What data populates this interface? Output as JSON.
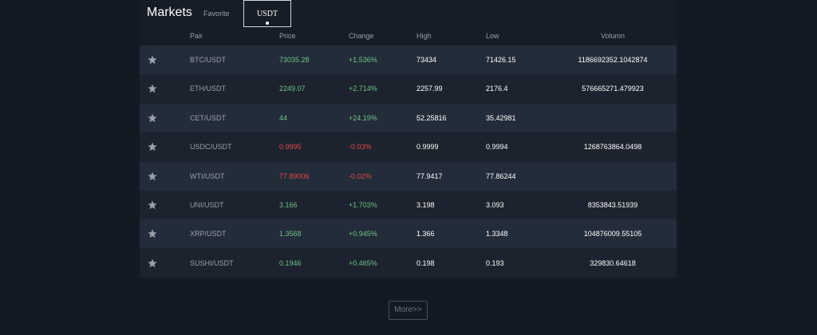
{
  "header": {
    "title": "Markets",
    "tabs": [
      "Favorite",
      "USDT"
    ]
  },
  "table": {
    "columns": [
      "Pair",
      "Price",
      "Change",
      "High",
      "Low",
      "Volumn"
    ],
    "rows": [
      [
        "BTC/USDT",
        "73035.28",
        "+1.536%",
        "73434",
        "71426.15",
        "1186692352.1042874"
      ],
      [
        "ETH/USDT",
        "2249.07",
        "+2.714%",
        "2257.99",
        "2176.4",
        "576665271.479923"
      ],
      [
        "CET/USDT",
        "44",
        "+24.19%",
        "52.25816",
        "35.42981",
        null
      ],
      [
        "USDC/USDT",
        "0.9995",
        "-0.03%",
        "0.9999",
        "0.9994",
        "1268763864.0498"
      ],
      [
        "WTI/USDT",
        "77.89006",
        "-0.02%",
        "77.9417",
        "77.86244",
        null
      ],
      [
        "UNI/USDT",
        "3.166",
        "+1.703%",
        "3.198",
        "3.093",
        "8353843.51939"
      ],
      [
        "XRP/USDT",
        "1.3568",
        "+0.945%",
        "1.366",
        "1.3348",
        "104876009.55105"
      ],
      [
        "SUSHI/USDT",
        "0.1946",
        "+0.465%",
        "0.198",
        "0.193",
        "329830.64618"
      ]
    ],
    "trend_colors": [
      "#6fc28a",
      "#6fc28a",
      "#6fc28a",
      "#e24a4a",
      "#e24a4a",
      "#6fc28a",
      "#6fc28a",
      "#6fc28a"
    ]
  },
  "more": "More>>"
}
